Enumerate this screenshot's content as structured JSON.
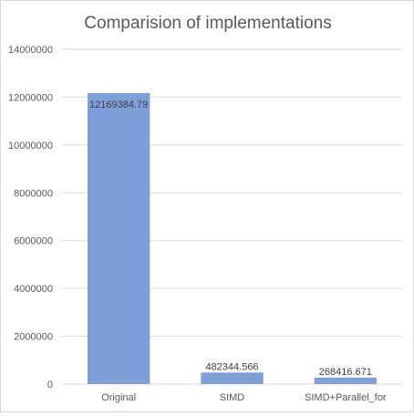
{
  "chart_data": {
    "type": "bar",
    "title": "Comparision of implementations",
    "xlabel": "",
    "ylabel": "",
    "categories": [
      "Original",
      "SIMD",
      "SIMD+Parallel_for"
    ],
    "values": [
      12169384.79,
      482344.566,
      268416.671
    ],
    "data_labels": [
      "12169384.79",
      "482344.566",
      "268416.671"
    ],
    "ylim": [
      0,
      14000000
    ],
    "yticks": [
      0,
      2000000,
      4000000,
      6000000,
      8000000,
      10000000,
      12000000,
      14000000
    ],
    "ytick_labels": [
      "0",
      "2000000",
      "4000000",
      "6000000",
      "8000000",
      "10000000",
      "12000000",
      "14000000"
    ],
    "grid": true,
    "legend": "none",
    "bar_color": "#7f9fd9",
    "grid_color": "#d9d9d9"
  }
}
